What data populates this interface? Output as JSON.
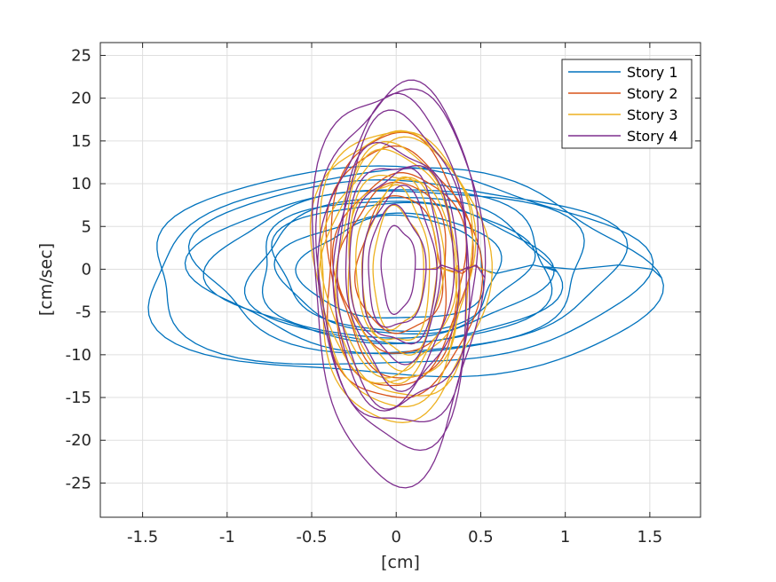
{
  "chart_data": {
    "type": "line",
    "title": "",
    "xlabel": "[cm]",
    "ylabel": "[cm/sec]",
    "xlim": [
      -1.75,
      1.8
    ],
    "ylim": [
      -29,
      26.5
    ],
    "xticks": [
      -1.5,
      -1,
      -0.5,
      0,
      0.5,
      1,
      1.5
    ],
    "xtick_labels": [
      "-1.5",
      "-1",
      "-0.5",
      "0",
      "0.5",
      "1",
      "1.5"
    ],
    "yticks": [
      -25,
      -20,
      -15,
      -10,
      -5,
      0,
      5,
      10,
      15,
      20,
      25
    ],
    "ytick_labels": [
      "-25",
      "-20",
      "-15",
      "-10",
      "-5",
      "0",
      "5",
      "10",
      "15",
      "20",
      "25"
    ],
    "grid": true,
    "legend_position": "top-right",
    "series": [
      {
        "name": "Story 1",
        "color": "#0072BD",
        "loops": [
          {
            "amp_x": 1.49,
            "amp_y": 12.0,
            "cx": 0.02,
            "cy": -1.0
          },
          {
            "amp_x": 1.45,
            "amp_y": 11.5,
            "cx": -0.05,
            "cy": 0.0
          },
          {
            "amp_x": 1.25,
            "amp_y": 10.0,
            "cx": 0.05,
            "cy": 0.5
          },
          {
            "amp_x": 1.15,
            "amp_y": 9.5,
            "cx": 0.0,
            "cy": 0.0
          },
          {
            "amp_x": 1.0,
            "amp_y": 9.0,
            "cx": -0.05,
            "cy": 0.3
          },
          {
            "amp_x": 0.9,
            "amp_y": 8.5,
            "cx": 0.03,
            "cy": -0.3
          },
          {
            "amp_x": 0.85,
            "amp_y": 8.0,
            "cx": 0.0,
            "cy": 0.0
          },
          {
            "amp_x": 0.75,
            "amp_y": 7.5,
            "cx": 0.02,
            "cy": 0.5
          },
          {
            "amp_x": 0.65,
            "amp_y": 7.0,
            "cx": -0.02,
            "cy": -0.5
          },
          {
            "amp_x": 0.55,
            "amp_y": 6.0,
            "cx": 0.0,
            "cy": 0.0
          }
        ]
      },
      {
        "name": "Story 2",
        "color": "#D95319",
        "loops": [
          {
            "amp_x": 0.45,
            "amp_y": 15.5,
            "cx": 0.02,
            "cy": 0.0
          },
          {
            "amp_x": 0.42,
            "amp_y": 14.0,
            "cx": 0.0,
            "cy": 0.5
          },
          {
            "amp_x": 0.38,
            "amp_y": 12.0,
            "cx": 0.03,
            "cy": -0.5
          },
          {
            "amp_x": 0.32,
            "amp_y": 10.0,
            "cx": 0.0,
            "cy": 0.0
          },
          {
            "amp_x": 0.25,
            "amp_y": 8.0,
            "cx": 0.02,
            "cy": 0.3
          }
        ]
      },
      {
        "name": "Story 3",
        "color": "#EDB120",
        "loops": [
          {
            "amp_x": 0.5,
            "amp_y": 17.0,
            "cx": 0.02,
            "cy": -0.5
          },
          {
            "amp_x": 0.47,
            "amp_y": 16.0,
            "cx": -0.02,
            "cy": 0.5
          },
          {
            "amp_x": 0.44,
            "amp_y": 15.0,
            "cx": 0.03,
            "cy": 0.0
          },
          {
            "amp_x": 0.4,
            "amp_y": 14.0,
            "cx": -0.03,
            "cy": 0.0
          },
          {
            "amp_x": 0.36,
            "amp_y": 13.0,
            "cx": 0.0,
            "cy": 0.5
          },
          {
            "amp_x": 0.32,
            "amp_y": 12.0,
            "cx": 0.02,
            "cy": -0.5
          },
          {
            "amp_x": 0.28,
            "amp_y": 11.0,
            "cx": 0.0,
            "cy": 0.0
          },
          {
            "amp_x": 0.24,
            "amp_y": 10.0,
            "cx": 0.01,
            "cy": 0.2
          },
          {
            "amp_x": 0.2,
            "amp_y": 9.0,
            "cx": 0.0,
            "cy": 0.0
          },
          {
            "amp_x": 0.15,
            "amp_y": 7.0,
            "cx": 0.01,
            "cy": 0.0
          }
        ]
      },
      {
        "name": "Story 4",
        "color": "#7E2F8E",
        "loops": [
          {
            "amp_x": 0.5,
            "amp_y": 23.0,
            "cx": 0.0,
            "cy": -1.0
          },
          {
            "amp_x": 0.47,
            "amp_y": 21.0,
            "cx": 0.02,
            "cy": 0.5
          },
          {
            "amp_x": 0.44,
            "amp_y": 19.0,
            "cx": 0.0,
            "cy": 0.0
          },
          {
            "amp_x": 0.4,
            "amp_y": 17.0,
            "cx": 0.03,
            "cy": 0.3
          },
          {
            "amp_x": 0.36,
            "amp_y": 15.0,
            "cx": 0.0,
            "cy": -0.3
          },
          {
            "amp_x": 0.32,
            "amp_y": 13.0,
            "cx": 0.02,
            "cy": 0.0
          },
          {
            "amp_x": 0.27,
            "amp_y": 11.0,
            "cx": 0.0,
            "cy": 0.5
          },
          {
            "amp_x": 0.22,
            "amp_y": 9.0,
            "cx": 0.02,
            "cy": 0.0
          },
          {
            "amp_x": 0.17,
            "amp_y": 7.0,
            "cx": 0.0,
            "cy": 0.0
          },
          {
            "amp_x": 0.1,
            "amp_y": 5.0,
            "cx": 0.01,
            "cy": 0.0
          }
        ]
      }
    ]
  }
}
